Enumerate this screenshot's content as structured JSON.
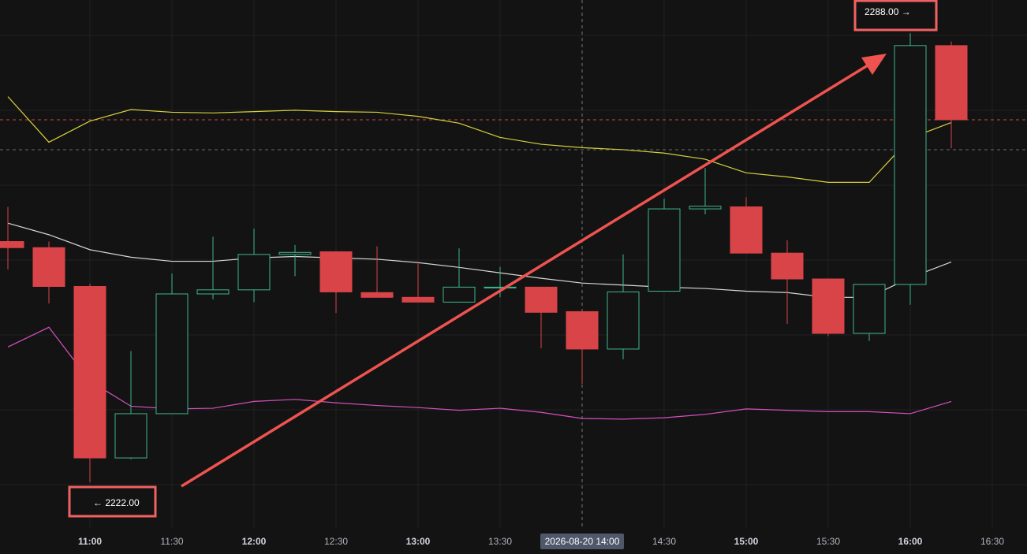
{
  "chart_data": {
    "type": "candlestick",
    "categories": [
      null,
      null,
      "11:00",
      null,
      "11:30",
      null,
      "12:00",
      null,
      "12:30",
      null,
      "13:00",
      null,
      "13:30",
      null,
      "2026-08-20 14:00",
      null,
      "14:30",
      null,
      "15:00",
      null,
      "15:30",
      null,
      "16:00",
      null,
      "16:30"
    ],
    "open": [
      2257.4,
      2256.5,
      2250.8,
      2225.6,
      2232.1,
      2249.7,
      2250.3,
      2255.5,
      2255.9,
      2249.9,
      2249.2,
      2248.5,
      2250.6,
      2250.7,
      2247.1,
      2241.6,
      2250.1,
      2262.2,
      2262.5,
      2255.7,
      2251.9,
      2243.9,
      2251.1,
      2286.2,
      null
    ],
    "high": [
      2262.5,
      2257.4,
      2251.2,
      2241.3,
      2252.7,
      2258.1,
      2259.3,
      2256.9,
      2256.0,
      2256.7,
      2254.3,
      2256.4,
      2253.7,
      2250.7,
      2247.1,
      2255.5,
      2263.7,
      2268.2,
      2263.9,
      2257.6,
      2251.9,
      2251.1,
      2288,
      2286.8,
      null
    ],
    "low": [
      2253.3,
      2248.3,
      2222,
      2225.4,
      2232.1,
      2248.9,
      2248.5,
      2252.3,
      2246.9,
      2249.2,
      2248.5,
      2248.5,
      2249.2,
      2241.7,
      2236.5,
      2240.1,
      2250.1,
      2261.4,
      2255.7,
      2245.3,
      2243.5,
      2242.8,
      2248.1,
      2271.1,
      null
    ],
    "close": [
      2256.5,
      2250.8,
      2225.6,
      2232.1,
      2249.7,
      2250.3,
      2255.5,
      2255.8,
      2250.0,
      2249.2,
      2248.5,
      2250.7,
      2250.7,
      2247.0,
      2241.6,
      2250.0,
      2262.2,
      2262.6,
      2255.7,
      2251.9,
      2243.9,
      2251.1,
      2286.2,
      2275.3,
      null
    ],
    "up_color": "#3fb68b",
    "down_color": "#d84448",
    "ylim": [
      2215.3,
      2292.9
    ],
    "crosshair": "2026-08-20 14:00",
    "price_lines": [
      {
        "value": 2275.3,
        "color": "#c94a4a"
      },
      {
        "value": 2270.9,
        "color": "#6b6b6b"
      }
    ],
    "overlays": [
      {
        "color": "#d8d03a",
        "values": [
          2278.7,
          2272.0,
          2275.1,
          2276.8,
          2276.4,
          2276.3,
          2276.5,
          2276.7,
          2276.5,
          2276.4,
          2275.8,
          2274.8,
          2272.7,
          2271.7,
          2271.2,
          2270.9,
          2270.4,
          2269.5,
          2267.5,
          2266.9,
          2266.1,
          2266.1,
          2272.6,
          2274.9,
          null
        ]
      },
      {
        "color": "#d6d6d6",
        "values": [
          2260.1,
          2258.4,
          2256.2,
          2255.1,
          2254.5,
          2254.5,
          2255.0,
          2255.2,
          2255.0,
          2254.8,
          2254.3,
          2253.6,
          2252.8,
          2252.0,
          2251.3,
          2251.0,
          2250.7,
          2250.5,
          2250.1,
          2249.9,
          2249.2,
          2249.2,
          2252.1,
          2254.4,
          null
        ]
      },
      {
        "color": "#d64fbf",
        "values": [
          2241.9,
          2244.8,
          2236.9,
          2233.2,
          2232.8,
          2232.9,
          2233.9,
          2234.2,
          2233.7,
          2233.3,
          2233.0,
          2232.6,
          2232.9,
          2232.3,
          2231.4,
          2231.3,
          2231.5,
          2232.0,
          2232.8,
          2232.6,
          2232.4,
          2232.4,
          2232.1,
          2233.9,
          null
        ]
      }
    ],
    "annotations": [
      {
        "text": "2288.00 →"
      },
      {
        "text": "← 2222.00"
      }
    ]
  }
}
